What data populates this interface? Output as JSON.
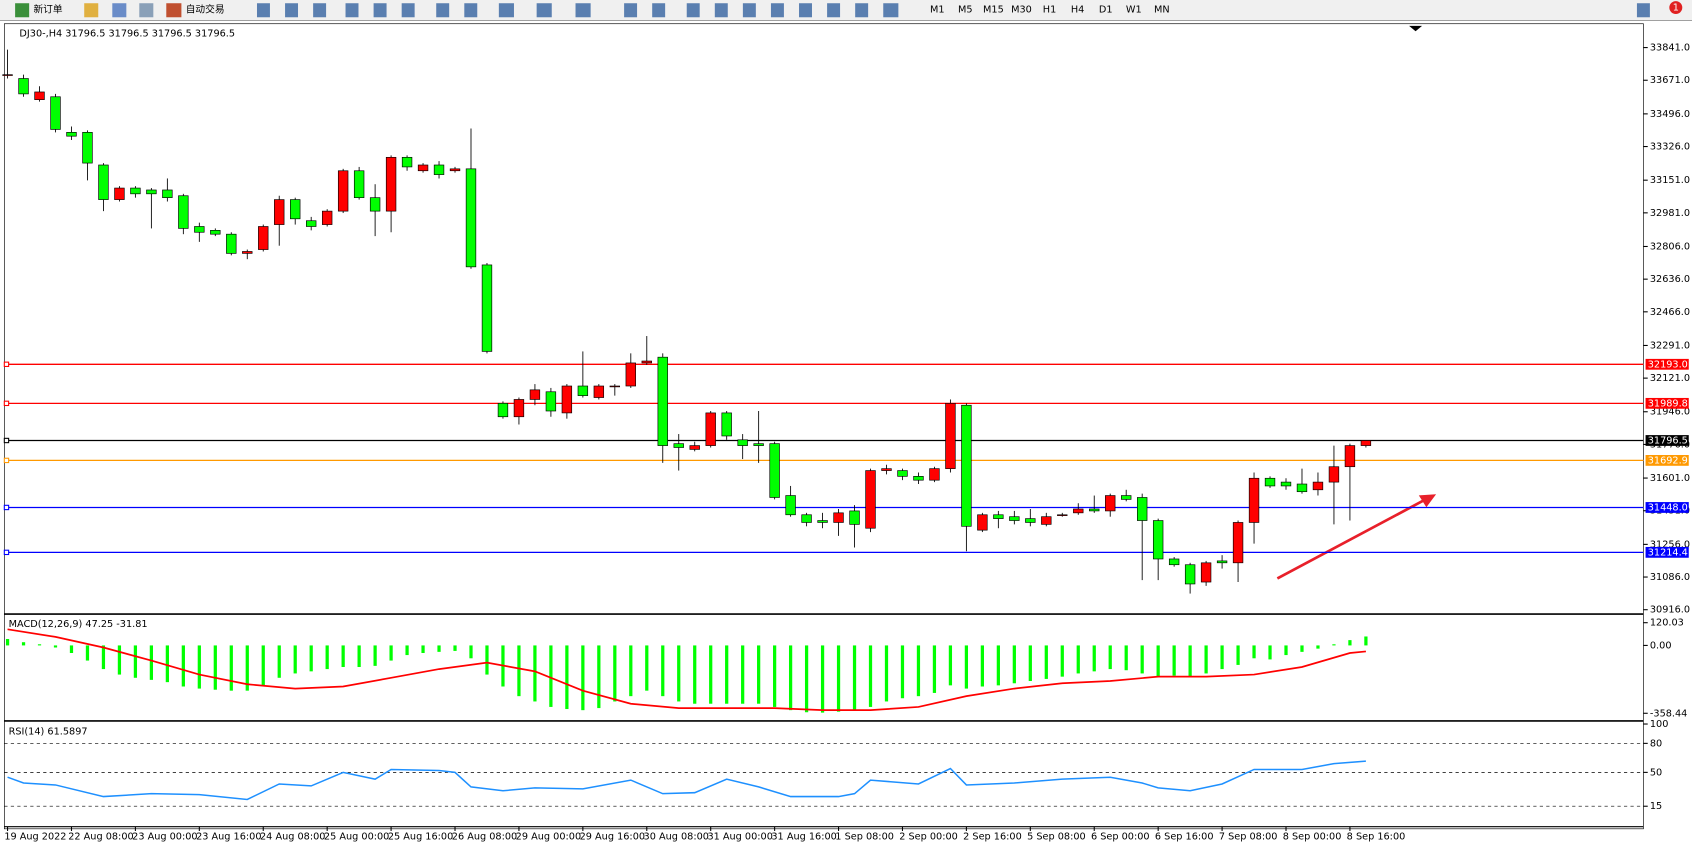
{
  "toolbar": {
    "new_order": "新订单",
    "auto_trading": "自动交易",
    "timeframes": [
      "M1",
      "M5",
      "M15",
      "M30",
      "H1",
      "H4",
      "D1",
      "W1",
      "MN"
    ],
    "notification_count": 1
  },
  "chart_data": [
    {
      "type": "candlestick",
      "title": "DJ30-,H4  31796.5 31796.5 31796.5 31796.5",
      "up_color": "#ff0000",
      "down_color": "#00ff00",
      "open": [
        33700,
        33680,
        33570,
        33585,
        33400,
        33400,
        33230,
        33050,
        33110,
        33100,
        33100,
        33070,
        32910,
        32890,
        32870,
        32770,
        32790,
        32920,
        33050,
        32940,
        32920,
        32990,
        33200,
        33060,
        32990,
        33270,
        33200,
        33230,
        33200,
        33210,
        32710,
        31990,
        31920,
        32010,
        32050,
        31940,
        32080,
        32020,
        32080,
        32080,
        32200,
        32230,
        31780,
        31750,
        31770,
        31940,
        31800,
        31780,
        31780,
        31510,
        31410,
        31380,
        31370,
        31430,
        31340,
        31640,
        31640,
        31610,
        31590,
        31650,
        31980,
        31330,
        31410,
        31400,
        31390,
        31360,
        31410,
        31420,
        31440,
        31430,
        31510,
        31500,
        31380,
        31180,
        31150,
        31060,
        31170,
        31160,
        31370,
        31600,
        31580,
        31570,
        31540,
        31580,
        31660,
        31770
      ],
      "high": [
        33830,
        33700,
        33640,
        33600,
        33430,
        33410,
        33240,
        33120,
        33120,
        33110,
        33160,
        33080,
        32930,
        32900,
        32880,
        32790,
        32920,
        33070,
        33060,
        32960,
        33000,
        33210,
        33220,
        33130,
        33280,
        33280,
        33240,
        33250,
        33220,
        33420,
        32720,
        32000,
        32020,
        32090,
        32070,
        32090,
        32260,
        32090,
        32090,
        32250,
        32340,
        32250,
        31830,
        31790,
        31950,
        31950,
        31830,
        31950,
        31790,
        31560,
        31420,
        31420,
        31440,
        31460,
        31650,
        31670,
        31650,
        31630,
        31660,
        32010,
        31990,
        31420,
        31430,
        31430,
        31440,
        31420,
        31420,
        31470,
        31510,
        31520,
        31540,
        31520,
        31390,
        31190,
        31160,
        31170,
        31200,
        31380,
        31630,
        31610,
        31600,
        31650,
        31630,
        31770,
        31780,
        31796.5
      ],
      "low": [
        33680,
        33585,
        33560,
        33400,
        33360,
        33150,
        32990,
        33040,
        33060,
        32900,
        33040,
        32870,
        32830,
        32860,
        32760,
        32740,
        32780,
        32810,
        32920,
        32890,
        32910,
        32980,
        33050,
        32860,
        32880,
        33200,
        33190,
        33160,
        33190,
        32690,
        32250,
        31910,
        31880,
        31980,
        31920,
        31910,
        32020,
        32010,
        32030,
        32070,
        32190,
        31680,
        31640,
        31740,
        31760,
        31800,
        31700,
        31680,
        31490,
        31400,
        31350,
        31340,
        31300,
        31240,
        31320,
        31620,
        31590,
        31570,
        31580,
        31630,
        31220,
        31320,
        31340,
        31360,
        31350,
        31350,
        31400,
        31410,
        31420,
        31400,
        31480,
        31070,
        31070,
        31140,
        31000,
        31040,
        31130,
        31060,
        31260,
        31550,
        31540,
        31520,
        31510,
        31360,
        31380,
        31760
      ],
      "close": [
        33700,
        33600,
        33610,
        33415,
        33380,
        33240,
        33050,
        33110,
        33080,
        33080,
        33060,
        32900,
        32880,
        32870,
        32770,
        32780,
        32910,
        33050,
        32950,
        32910,
        32990,
        33200,
        33060,
        32990,
        33270,
        33220,
        33230,
        33180,
        33210,
        32700,
        32260,
        31920,
        32010,
        32060,
        31950,
        32080,
        32030,
        32080,
        32080,
        32200,
        32210,
        31770,
        31760,
        31770,
        31940,
        31820,
        31770,
        31770,
        31500,
        31410,
        31370,
        31370,
        31420,
        31360,
        31640,
        31650,
        31610,
        31590,
        31650,
        31990,
        31350,
        31410,
        31390,
        31380,
        31370,
        31400,
        31410,
        31440,
        31430,
        31510,
        31490,
        31380,
        31180,
        31150,
        31050,
        31160,
        31160,
        31370,
        31600,
        31560,
        31560,
        31530,
        31580,
        31660,
        31770,
        31796.5
      ],
      "ylim": [
        30899,
        33965
      ],
      "yticks": [
        {
          "value": 33841,
          "label": "33841.0"
        },
        {
          "value": 33671,
          "label": "33671.0"
        },
        {
          "value": 33496,
          "label": "33496.0"
        },
        {
          "value": 33326,
          "label": "33326.0"
        },
        {
          "value": 33151,
          "label": "33151.0"
        },
        {
          "value": 32981,
          "label": "32981.0"
        },
        {
          "value": 32806,
          "label": "32806.0"
        },
        {
          "value": 32636,
          "label": "32636.0"
        },
        {
          "value": 32466,
          "label": "32466.0"
        },
        {
          "value": 32291,
          "label": "32291.0"
        },
        {
          "value": 32121,
          "label": "32121.0"
        },
        {
          "value": 31946,
          "label": "31946.0"
        },
        {
          "value": 31776,
          "label": "31776.0"
        },
        {
          "value": 31601,
          "label": "31601.0"
        },
        {
          "value": 31431,
          "label": "31431.0"
        },
        {
          "value": 31256,
          "label": "31256.0"
        },
        {
          "value": 31086,
          "label": "31086.0"
        },
        {
          "value": 30916,
          "label": "30916.0"
        }
      ],
      "levels": [
        {
          "value": 32193,
          "label": "32193.0",
          "color": "#ff0000"
        },
        {
          "value": 31989.8,
          "label": "31989.8",
          "color": "#ff0000"
        },
        {
          "value": 31796.5,
          "label": "31796.5",
          "color": "#000000"
        },
        {
          "value": 31692.9,
          "label": "31692.9",
          "color": "#ff9900"
        },
        {
          "value": 31448,
          "label": "31448.0",
          "color": "#0000ff"
        },
        {
          "value": 31214.4,
          "label": "31214.4",
          "color": "#0000ff"
        }
      ],
      "xticks": [
        {
          "value": 0,
          "label": "19 Aug 2022"
        },
        {
          "value": 4,
          "label": "22 Aug 08:00"
        },
        {
          "value": 8,
          "label": "23 Aug 00:00"
        },
        {
          "value": 12,
          "label": "23 Aug 16:00"
        },
        {
          "value": 16,
          "label": "24 Aug 08:00"
        },
        {
          "value": 20,
          "label": "25 Aug 00:00"
        },
        {
          "value": 24,
          "label": "25 Aug 16:00"
        },
        {
          "value": 28,
          "label": "26 Aug 08:00"
        },
        {
          "value": 32,
          "label": "29 Aug 00:00"
        },
        {
          "value": 36,
          "label": "29 Aug 16:00"
        },
        {
          "value": 40,
          "label": "30 Aug 08:00"
        },
        {
          "value": 44,
          "label": "31 Aug 00:00"
        },
        {
          "value": 48,
          "label": "31 Aug 16:00"
        },
        {
          "value": 52,
          "label": "1 Sep 08:00"
        },
        {
          "value": 56,
          "label": "2 Sep 00:00"
        },
        {
          "value": 60,
          "label": "2 Sep 16:00"
        },
        {
          "value": 64,
          "label": "5 Sep 08:00"
        },
        {
          "value": 68,
          "label": "6 Sep 00:00"
        },
        {
          "value": 72,
          "label": "6 Sep 16:00"
        },
        {
          "value": 76,
          "label": "7 Sep 08:00"
        },
        {
          "value": 80,
          "label": "8 Sep 00:00"
        },
        {
          "value": 84,
          "label": "8 Sep 16:00"
        }
      ]
    },
    {
      "type": "macd",
      "title": "MACD(12,26,9) 47.25 -31.81",
      "histogram": {
        "color": "#00ff00",
        "values": [
          34,
          17,
          6,
          -11,
          -40,
          -80,
          -125,
          -154,
          -171,
          -182,
          -194,
          -217,
          -228,
          -234,
          -239,
          -239,
          -211,
          -171,
          -148,
          -137,
          -125,
          -114,
          -114,
          -108,
          -80,
          -51,
          -40,
          -34,
          -29,
          -68,
          -154,
          -217,
          -268,
          -296,
          -325,
          -336,
          -342,
          -331,
          -296,
          -268,
          -239,
          -268,
          -296,
          -308,
          -308,
          -308,
          -308,
          -308,
          -325,
          -342,
          -353,
          -355,
          -350,
          -345,
          -325,
          -296,
          -279,
          -268,
          -251,
          -211,
          -228,
          -217,
          -211,
          -200,
          -188,
          -177,
          -165,
          -148,
          -137,
          -125,
          -131,
          -148,
          -165,
          -160,
          -165,
          -148,
          -125,
          -103,
          -68,
          -74,
          -51,
          -34,
          -17,
          6,
          28,
          47.25
        ]
      },
      "signal": {
        "color": "#ff0000",
        "x": [
          0,
          3,
          6,
          9,
          12,
          15,
          18,
          21,
          24,
          27,
          30,
          33,
          36,
          39,
          42,
          45,
          48,
          51,
          54,
          57,
          60,
          63,
          66,
          69,
          72,
          75,
          78,
          81,
          84,
          85
        ],
        "values": [
          85,
          45,
          -11,
          -80,
          -154,
          -205,
          -228,
          -217,
          -171,
          -125,
          -91,
          -137,
          -239,
          -308,
          -331,
          -331,
          -331,
          -342,
          -342,
          -325,
          -268,
          -228,
          -200,
          -188,
          -165,
          -165,
          -154,
          -114,
          -40,
          -31.81
        ]
      },
      "ylim": [
        -393,
        160
      ],
      "yticks": [
        120.03,
        {
          "value": 0,
          "label": "0.00"
        },
        -358.44
      ]
    },
    {
      "type": "rsi",
      "title": "RSI(14) 61.5897",
      "color": "#1e90ff",
      "x": [
        0,
        1,
        3,
        6,
        9,
        12,
        15,
        17,
        19,
        21,
        23,
        24,
        27,
        28,
        29,
        31,
        33,
        36,
        39,
        41,
        43,
        45,
        47,
        49,
        52,
        53,
        54,
        57,
        59,
        60,
        63,
        66,
        69,
        71,
        72,
        74,
        76,
        78,
        81,
        83,
        85
      ],
      "values": [
        45,
        39,
        37,
        25,
        28,
        27,
        22,
        38,
        36,
        50,
        43,
        53,
        52,
        50,
        35,
        31,
        34,
        33,
        42,
        28,
        29,
        43,
        35,
        25,
        25,
        28,
        42,
        38,
        54,
        37,
        39,
        43,
        45,
        39,
        34,
        31,
        38,
        53,
        53,
        59,
        61.5897
      ],
      "ylim": [
        -5,
        101
      ],
      "yticks": [
        100,
        80,
        50,
        15
      ]
    }
  ]
}
